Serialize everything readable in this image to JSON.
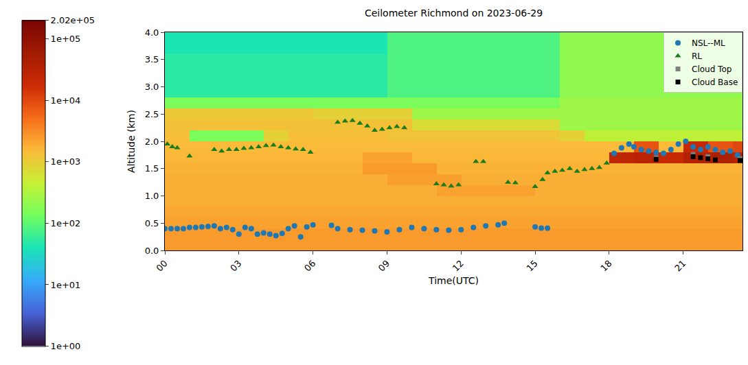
{
  "chart_data": {
    "type": "heatmap",
    "title": "Ceilometer Richmond on 2023-06-29",
    "x_label": "Time(UTC)",
    "y_label": "Altitude (km)",
    "xlim": [
      0,
      23.4
    ],
    "xticks": [
      {
        "value": 0,
        "label": "00"
      },
      {
        "value": 3,
        "label": "03"
      },
      {
        "value": 6,
        "label": "06"
      },
      {
        "value": 9,
        "label": "09"
      },
      12,
      15,
      18,
      21
    ],
    "ylim": [
      0,
      4
    ],
    "yticks": [
      {
        "value": 0,
        "label": "0.0"
      },
      0.5,
      {
        "value": 1,
        "label": "1.0"
      },
      1.5,
      {
        "value": 2,
        "label": "2.0"
      },
      2.5,
      {
        "value": 3,
        "label": "3.0"
      },
      3.5,
      {
        "value": 4,
        "label": "4.0"
      }
    ],
    "log": "z",
    "grid": false,
    "legend": "upper right",
    "heatmap": {
      "x": [
        0.5,
        1.5,
        2.5,
        3.5,
        4.5,
        5.5,
        6.5,
        7.5,
        8.5,
        9.5,
        10.5,
        11.5,
        12.5,
        13.5,
        14.5,
        15.5,
        16.5,
        17.5,
        18.5,
        19.5,
        20.5,
        21.5,
        22.5,
        23.5
      ],
      "y": [
        0.1,
        0.3,
        0.5,
        0.7,
        0.9,
        1.1,
        1.3,
        1.5,
        1.7,
        1.9,
        2.1,
        2.3,
        2.5,
        2.7,
        2.9,
        3.1,
        3.3,
        3.5,
        3.7,
        3.9
      ],
      "z": [
        [
          2500,
          2500,
          2500,
          2500,
          2500,
          2500,
          2500,
          2500,
          2500,
          2500,
          2500,
          2500,
          2500,
          2500,
          2500,
          2500,
          2500,
          2500,
          2500,
          2500,
          2500,
          2500,
          2500,
          2500
        ],
        [
          2500,
          2500,
          2500,
          2500,
          2500,
          2500,
          2500,
          2500,
          2500,
          2500,
          2500,
          2500,
          2500,
          2500,
          2500,
          2500,
          2500,
          2500,
          2500,
          2500,
          2500,
          2500,
          2500,
          2500
        ],
        [
          2200,
          2200,
          2200,
          2200,
          2200,
          2200,
          2200,
          2200,
          2200,
          2200,
          2200,
          2200,
          2200,
          2200,
          2200,
          2200,
          2200,
          2200,
          2200,
          2200,
          2200,
          2200,
          2200,
          2200
        ],
        [
          2000,
          2000,
          2000,
          2000,
          2000,
          2000,
          2000,
          2000,
          2000,
          2000,
          2000,
          2000,
          2000,
          2000,
          2000,
          2000,
          2000,
          2000,
          2000,
          2000,
          2000,
          2000,
          2000,
          2000
        ],
        [
          1800,
          1800,
          1800,
          1800,
          1800,
          1800,
          1800,
          1800,
          1800,
          1800,
          1800,
          1800,
          1800,
          1800,
          1800,
          1800,
          1800,
          1800,
          1800,
          1800,
          1800,
          1800,
          1800,
          1800
        ],
        [
          1800,
          1800,
          1800,
          1800,
          1800,
          1800,
          1800,
          1800,
          1800,
          1800,
          1800,
          2200,
          2200,
          2200,
          2200,
          1800,
          1800,
          1800,
          1800,
          1800,
          1800,
          1800,
          1800,
          1800
        ],
        [
          1800,
          1800,
          1800,
          1800,
          1800,
          1800,
          1800,
          1800,
          1800,
          2300,
          2300,
          2300,
          1800,
          1800,
          1800,
          1800,
          1800,
          1800,
          1800,
          1800,
          1800,
          1800,
          1800,
          1800
        ],
        [
          1700,
          1700,
          1700,
          1700,
          1700,
          1700,
          1700,
          1700,
          2500,
          2500,
          2500,
          1700,
          1700,
          1700,
          1700,
          1700,
          1700,
          1700,
          1700,
          1700,
          1700,
          1700,
          1700,
          1700
        ],
        [
          1600,
          1600,
          1600,
          1600,
          1600,
          1600,
          1600,
          1600,
          2200,
          2200,
          1600,
          1600,
          1600,
          1600,
          1600,
          1600,
          1600,
          1600,
          25000,
          30000,
          20000,
          35000,
          40000,
          30000
        ],
        [
          1500,
          1500,
          1500,
          1500,
          1500,
          1500,
          1500,
          1500,
          1500,
          1500,
          1500,
          1500,
          1500,
          1500,
          1500,
          1500,
          1500,
          1500,
          1500,
          8000,
          1500,
          20000,
          8000,
          10000
        ],
        [
          1400,
          150,
          150,
          150,
          900,
          1400,
          1400,
          1400,
          1400,
          1200,
          1200,
          1200,
          1200,
          1200,
          1200,
          1200,
          900,
          400,
          400,
          400,
          400,
          400,
          400,
          400
        ],
        [
          1300,
          1300,
          1300,
          1300,
          1300,
          1300,
          1300,
          1300,
          1300,
          1300,
          700,
          700,
          700,
          700,
          700,
          700,
          250,
          250,
          250,
          250,
          250,
          250,
          250,
          250
        ],
        [
          1100,
          1100,
          1100,
          1100,
          1100,
          1100,
          900,
          900,
          900,
          900,
          250,
          250,
          250,
          250,
          250,
          250,
          250,
          250,
          250,
          250,
          250,
          250,
          250,
          250
        ],
        [
          150,
          150,
          150,
          150,
          150,
          150,
          150,
          150,
          150,
          150,
          150,
          150,
          150,
          150,
          150,
          150,
          250,
          250,
          250,
          250,
          250,
          250,
          250,
          250
        ],
        [
          50,
          50,
          50,
          50,
          50,
          50,
          50,
          50,
          50,
          80,
          80,
          80,
          80,
          80,
          80,
          80,
          200,
          200,
          200,
          200,
          200,
          200,
          200,
          200
        ],
        [
          50,
          50,
          50,
          50,
          50,
          50,
          50,
          50,
          50,
          80,
          80,
          80,
          80,
          80,
          80,
          80,
          200,
          200,
          200,
          200,
          200,
          200,
          200,
          200
        ],
        [
          50,
          50,
          50,
          50,
          50,
          50,
          50,
          50,
          50,
          80,
          80,
          80,
          80,
          80,
          80,
          80,
          200,
          200,
          200,
          200,
          200,
          200,
          200,
          200
        ],
        [
          50,
          50,
          50,
          50,
          50,
          50,
          50,
          50,
          50,
          80,
          80,
          80,
          80,
          80,
          80,
          80,
          200,
          200,
          200,
          200,
          200,
          200,
          200,
          200
        ],
        [
          40,
          40,
          40,
          40,
          40,
          40,
          40,
          40,
          40,
          80,
          80,
          80,
          80,
          80,
          80,
          80,
          200,
          200,
          200,
          200,
          200,
          200,
          200,
          200
        ],
        [
          40,
          40,
          40,
          40,
          40,
          40,
          40,
          40,
          40,
          80,
          80,
          80,
          80,
          80,
          80,
          80,
          200,
          200,
          200,
          200,
          200,
          200,
          200,
          200
        ]
      ],
      "zlim": [
        1,
        202000
      ],
      "zticks": [
        {
          "value": 1,
          "label": "1e+00"
        },
        {
          "value": 10,
          "label": "1e+01"
        },
        {
          "value": 100,
          "label": "1e+02"
        },
        {
          "value": 1000,
          "label": "1e+03"
        },
        {
          "value": 10000,
          "label": "1e+04"
        },
        {
          "value": 100000,
          "label": "1e+05"
        },
        {
          "value": 202000,
          "label": "2.02e+05"
        }
      ]
    },
    "series": [
      {
        "name": "NSL--ML",
        "type": "scatter",
        "marker": "circle",
        "color": "#1f77b4",
        "x": [
          0,
          0.25,
          0.5,
          0.75,
          1,
          1.25,
          1.5,
          1.75,
          2,
          2.25,
          2.5,
          2.75,
          3,
          3.25,
          3.5,
          3.75,
          4,
          4.25,
          4.5,
          4.75,
          5,
          5.25,
          5.5,
          5.75,
          6,
          6.75,
          7,
          7.5,
          8,
          8.5,
          9,
          9.5,
          10,
          10.5,
          11,
          11.5,
          12,
          12.5,
          13,
          13.5,
          13.75,
          15,
          15.25,
          15.5,
          18.2,
          18.5,
          18.8,
          19,
          19.3,
          19.6,
          19.9,
          20.2,
          20.5,
          20.8,
          21.1,
          21.4,
          21.7,
          22,
          22.3,
          22.6,
          22.9,
          23.2
        ],
        "values": [
          0.4,
          0.4,
          0.4,
          0.4,
          0.42,
          0.42,
          0.43,
          0.44,
          0.45,
          0.4,
          0.42,
          0.38,
          0.3,
          0.42,
          0.4,
          0.3,
          0.32,
          0.3,
          0.27,
          0.31,
          0.4,
          0.45,
          0.25,
          0.43,
          0.47,
          0.46,
          0.4,
          0.38,
          0.37,
          0.36,
          0.34,
          0.38,
          0.42,
          0.4,
          0.38,
          0.37,
          0.38,
          0.42,
          0.45,
          0.47,
          0.5,
          0.43,
          0.41,
          0.41,
          1.78,
          1.88,
          1.95,
          1.9,
          1.85,
          1.82,
          1.8,
          1.78,
          1.85,
          1.95,
          2.0,
          1.9,
          1.85,
          1.9,
          1.85,
          1.8,
          1.82,
          1.75
        ]
      },
      {
        "name": "RL",
        "type": "scatter",
        "marker": "triangle-up",
        "color": "#1c7c1c",
        "x": [
          0.1,
          0.3,
          0.5,
          1,
          2,
          2.3,
          2.6,
          2.9,
          3.2,
          3.5,
          3.8,
          4.1,
          4.4,
          4.7,
          5,
          5.3,
          5.6,
          5.9,
          7,
          7.3,
          7.6,
          7.9,
          8.2,
          8.5,
          8.8,
          9.1,
          9.4,
          9.7,
          11,
          11.3,
          11.6,
          11.9,
          12.6,
          12.9,
          13.9,
          14.2,
          15,
          15.3,
          15.5,
          15.8,
          16.1,
          16.4,
          16.7,
          17,
          17.3,
          17.6,
          17.9
        ],
        "values": [
          1.95,
          1.9,
          1.88,
          1.73,
          1.85,
          1.82,
          1.85,
          1.85,
          1.87,
          1.88,
          1.9,
          1.92,
          1.93,
          1.9,
          1.88,
          1.86,
          1.85,
          1.8,
          2.35,
          2.37,
          2.38,
          2.33,
          2.28,
          2.2,
          2.22,
          2.25,
          2.27,
          2.25,
          1.22,
          1.2,
          1.18,
          1.2,
          1.63,
          1.63,
          1.25,
          1.24,
          1.17,
          1.3,
          1.42,
          1.45,
          1.47,
          1.5,
          1.45,
          1.48,
          1.5,
          1.52,
          1.6
        ]
      },
      {
        "name": "Cloud Top",
        "type": "scatter",
        "marker": "square",
        "color": "#808080",
        "x": [
          19.9,
          21.4,
          22,
          23.3
        ],
        "values": [
          1.7,
          1.76,
          1.72,
          1.68
        ]
      },
      {
        "name": "Cloud Base",
        "type": "scatter",
        "marker": "square",
        "color": "#000000",
        "x": [
          19.9,
          21.4,
          21.7,
          22,
          22.3,
          23.3
        ],
        "values": [
          1.67,
          1.72,
          1.7,
          1.68,
          1.66,
          1.65
        ]
      }
    ]
  }
}
